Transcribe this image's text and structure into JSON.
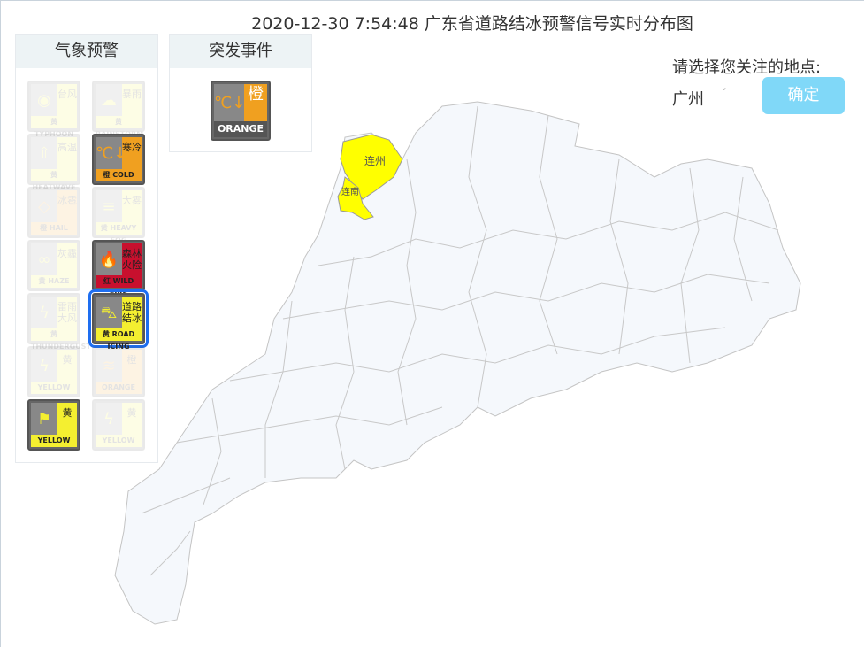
{
  "title": "2020-12-30 7:54:48 广东省道路结冰预警信号实时分布图",
  "tabs": {
    "weather": "气象预警",
    "emergency": "突发事件"
  },
  "weather_icons": [
    {
      "name": "typhoon",
      "glyph": "◉",
      "cn": "台风",
      "level": "黄",
      "en": "TYPHOON",
      "color": "#f4ef30",
      "active": false
    },
    {
      "name": "rainstorm",
      "glyph": "☁",
      "cn": "暴雨",
      "level": "黄",
      "en": "RAINSTORM",
      "color": "#f4ef30",
      "active": false
    },
    {
      "name": "heatwave",
      "glyph": "⇧",
      "cn": "高温",
      "level": "黄",
      "en": "HEATWAVE",
      "color": "#f4ef30",
      "active": false
    },
    {
      "name": "cold",
      "glyph": "℃↓",
      "cn": "寒冷",
      "level": "橙",
      "en": "COLD",
      "color": "#f0a020",
      "active": true
    },
    {
      "name": "hail",
      "glyph": "◇",
      "cn": "冰雹",
      "level": "橙",
      "en": "HAIL",
      "color": "#f0a020",
      "active": false
    },
    {
      "name": "heavy-fog",
      "glyph": "≡",
      "cn": "大雾",
      "level": "黄",
      "en": "HEAVY FOG",
      "color": "#f4ef30",
      "active": false
    },
    {
      "name": "haze",
      "glyph": "∞",
      "cn": "灰霾",
      "level": "黄",
      "en": "HAZE",
      "color": "#f4ef30",
      "active": false
    },
    {
      "name": "wildfire",
      "glyph": "🔥",
      "cn": "森林火险",
      "level": "红",
      "en": "WILD FIRE",
      "color": "#c8102e",
      "active": true
    },
    {
      "name": "thunder-gust",
      "glyph": "ϟ",
      "cn": "雷雨大风",
      "level": "黄",
      "en": "THUNDERGUST",
      "color": "#f4ef30",
      "active": false
    },
    {
      "name": "road-icing",
      "glyph": "⛍",
      "cn": "道路结冰",
      "level": "黄",
      "en": "ROAD ICING",
      "color": "#f4ef30",
      "active": true,
      "selected": true
    },
    {
      "name": "lightning",
      "glyph": "ϟ",
      "cn": "黄",
      "level": "",
      "en": "YELLOW",
      "color": "#f4ef30",
      "active": false
    },
    {
      "name": "dry-heat",
      "glyph": "≋",
      "cn": "橙",
      "level": "",
      "en": "ORANGE",
      "color": "#f0a020",
      "active": false
    },
    {
      "name": "flag",
      "glyph": "⚑",
      "cn": "黄",
      "level": "",
      "en": "YELLOW",
      "color": "#f4ef30",
      "active": true
    },
    {
      "name": "lightning-2",
      "glyph": "ϟ",
      "cn": "黄",
      "level": "",
      "en": "YELLOW",
      "color": "#f4ef30",
      "active": false
    }
  ],
  "emergency_icon": {
    "glyph": "℃↓",
    "cn": "橙",
    "en": "ORANGE",
    "color": "#f0a020"
  },
  "location": {
    "prompt": "请选择您关注的地点:",
    "selected": "广州",
    "confirm": "确定"
  },
  "map": {
    "regions": [
      {
        "name": "连州",
        "level": "yellow",
        "color": "#ffff00"
      },
      {
        "name": "连南",
        "level": "yellow",
        "color": "#ffff00"
      }
    ],
    "fill": "#f5f8fc",
    "stroke": "#c4c4c4"
  }
}
